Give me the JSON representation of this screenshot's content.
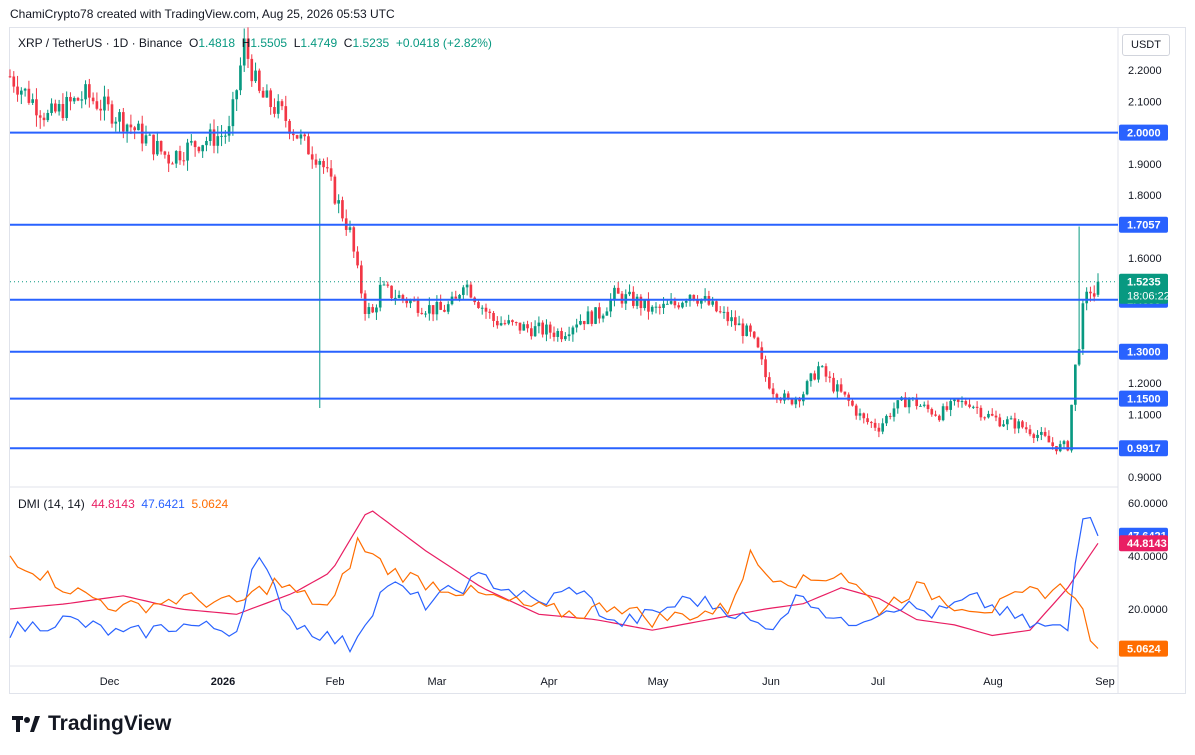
{
  "header": {
    "title": "ChamiCrypto78 created with TradingView.com, Aug 25, 2026 05:53 UTC"
  },
  "legend": {
    "symbol": "XRP / TetherUS · 1D · Binance",
    "o_label": "O",
    "o": "1.4818",
    "h_label": "H",
    "h": "1.5505",
    "l_label": "L",
    "l": "1.4749",
    "c_label": "C",
    "c": "1.5235",
    "change": "+0.0418 (+2.82%)"
  },
  "currency": "USDT",
  "dmi_legend": {
    "name": "DMI (14, 14)",
    "v1": "44.8143",
    "v2": "47.6421",
    "v3": "5.0624"
  },
  "brand": {
    "name": "TradingView"
  },
  "colors": {
    "up": "#089981",
    "down": "#f23645",
    "level": "#2962ff",
    "adx": "#ff6d00",
    "plus_di": "#2962ff",
    "minus_di": "#e91e63"
  },
  "chart_data": [
    {
      "type": "candlestick",
      "title": "XRP / TetherUS · 1D · Binance",
      "x_ticks": [
        "Dec",
        "2026",
        "Feb",
        "Mar",
        "Apr",
        "May",
        "Jun",
        "Jul",
        "Aug",
        "Sep"
      ],
      "y_ticks": [
        "2.2000",
        "2.1000",
        "1.9000",
        "1.8000",
        "1.6000",
        "1.2000",
        "1.1000",
        "0.9000"
      ],
      "ylim": [
        0.87,
        2.32
      ],
      "levels": [
        "2.0000",
        "1.7057",
        "1.4658",
        "1.3000",
        "1.1500",
        "0.9917"
      ],
      "price_label": "1.5235",
      "countdown": "18:06:22",
      "price_path": [
        [
          0,
          2.18
        ],
        [
          10,
          2.05
        ],
        [
          20,
          2.12
        ],
        [
          30,
          2.04
        ],
        [
          36,
          1.98
        ],
        [
          42,
          1.92
        ],
        [
          50,
          1.97
        ],
        [
          58,
          2.0
        ],
        [
          62,
          2.28
        ],
        [
          66,
          2.12
        ],
        [
          72,
          2.06
        ],
        [
          78,
          1.96
        ],
        [
          82,
          1.92
        ],
        [
          86,
          1.8
        ],
        [
          90,
          1.68
        ],
        [
          92,
          1.55
        ],
        [
          94,
          1.44
        ],
        [
          96,
          1.42
        ],
        [
          98,
          1.5
        ],
        [
          102,
          1.48
        ],
        [
          108,
          1.45
        ],
        [
          114,
          1.43
        ],
        [
          118,
          1.46
        ],
        [
          120,
          1.53
        ],
        [
          124,
          1.46
        ],
        [
          128,
          1.4
        ],
        [
          134,
          1.38
        ],
        [
          140,
          1.37
        ],
        [
          146,
          1.36
        ],
        [
          150,
          1.4
        ],
        [
          156,
          1.42
        ],
        [
          160,
          1.48
        ],
        [
          166,
          1.46
        ],
        [
          170,
          1.43
        ],
        [
          176,
          1.45
        ],
        [
          180,
          1.49
        ],
        [
          184,
          1.46
        ],
        [
          188,
          1.42
        ],
        [
          192,
          1.39
        ],
        [
          196,
          1.35
        ],
        [
          198,
          1.3
        ],
        [
          200,
          1.22
        ],
        [
          202,
          1.18
        ],
        [
          206,
          1.14
        ],
        [
          210,
          1.17
        ],
        [
          214,
          1.25
        ],
        [
          218,
          1.19
        ],
        [
          222,
          1.14
        ],
        [
          226,
          1.08
        ],
        [
          230,
          1.06
        ],
        [
          234,
          1.12
        ],
        [
          238,
          1.15
        ],
        [
          242,
          1.12
        ],
        [
          246,
          1.1
        ],
        [
          250,
          1.13
        ],
        [
          254,
          1.14
        ],
        [
          258,
          1.1
        ],
        [
          262,
          1.08
        ],
        [
          266,
          1.07
        ],
        [
          270,
          1.05
        ],
        [
          274,
          1.02
        ],
        [
          276,
          1.0
        ],
        [
          278,
          0.995
        ],
        [
          280,
          1.0
        ],
        [
          281,
          1.13
        ],
        [
          282,
          1.25
        ],
        [
          283,
          1.33
        ],
        [
          284,
          1.43
        ],
        [
          285,
          1.47
        ],
        [
          286,
          1.5
        ],
        [
          287,
          1.48
        ],
        [
          288,
          1.52
        ]
      ]
    },
    {
      "type": "line",
      "title": "DMI (14, 14)",
      "ylim": [
        0,
        65
      ],
      "y_ticks": [
        "60.0000",
        "40.0000",
        "20.0000"
      ],
      "series": [
        {
          "name": "44.8143",
          "values": [
            [
              0,
              20
            ],
            [
              15,
              22
            ],
            [
              30,
              25
            ],
            [
              45,
              20
            ],
            [
              60,
              18
            ],
            [
              75,
              26
            ],
            [
              85,
              34
            ],
            [
              95,
              58
            ],
            [
              110,
              42
            ],
            [
              125,
              28
            ],
            [
              140,
              18
            ],
            [
              155,
              16
            ],
            [
              170,
              12
            ],
            [
              185,
              16
            ],
            [
              200,
              20
            ],
            [
              210,
              22
            ],
            [
              220,
              28
            ],
            [
              230,
              24
            ],
            [
              240,
              16
            ],
            [
              250,
              14
            ],
            [
              260,
              10
            ],
            [
              270,
              12
            ],
            [
              280,
              28
            ],
            [
              288,
              44.8
            ]
          ]
        },
        {
          "name": "47.6421",
          "values": [
            [
              0,
              12
            ],
            [
              15,
              16
            ],
            [
              30,
              10
            ],
            [
              45,
              14
            ],
            [
              60,
              12
            ],
            [
              65,
              40
            ],
            [
              75,
              15
            ],
            [
              90,
              6
            ],
            [
              100,
              30
            ],
            [
              110,
              22
            ],
            [
              125,
              32
            ],
            [
              140,
              22
            ],
            [
              150,
              28
            ],
            [
              160,
              14
            ],
            [
              170,
              18
            ],
            [
              180,
              24
            ],
            [
              190,
              20
            ],
            [
              200,
              12
            ],
            [
              210,
              26
            ],
            [
              220,
              14
            ],
            [
              235,
              22
            ],
            [
              245,
              18
            ],
            [
              255,
              24
            ],
            [
              270,
              14
            ],
            [
              280,
              12
            ],
            [
              283,
              50
            ],
            [
              285,
              58
            ],
            [
              288,
              47.6
            ]
          ]
        },
        {
          "name": "5.0624",
          "values": [
            [
              0,
              40
            ],
            [
              15,
              28
            ],
            [
              30,
              20
            ],
            [
              45,
              24
            ],
            [
              60,
              22
            ],
            [
              70,
              30
            ],
            [
              85,
              20
            ],
            [
              92,
              45
            ],
            [
              100,
              35
            ],
            [
              110,
              30
            ],
            [
              125,
              25
            ],
            [
              140,
              20
            ],
            [
              150,
              18
            ],
            [
              160,
              22
            ],
            [
              170,
              16
            ],
            [
              180,
              18
            ],
            [
              190,
              20
            ],
            [
              196,
              40
            ],
            [
              200,
              34
            ],
            [
              210,
              30
            ],
            [
              220,
              34
            ],
            [
              230,
              20
            ],
            [
              240,
              28
            ],
            [
              250,
              22
            ],
            [
              260,
              20
            ],
            [
              270,
              26
            ],
            [
              280,
              28
            ],
            [
              284,
              20
            ],
            [
              286,
              8
            ],
            [
              288,
              5.1
            ]
          ]
        }
      ]
    }
  ]
}
